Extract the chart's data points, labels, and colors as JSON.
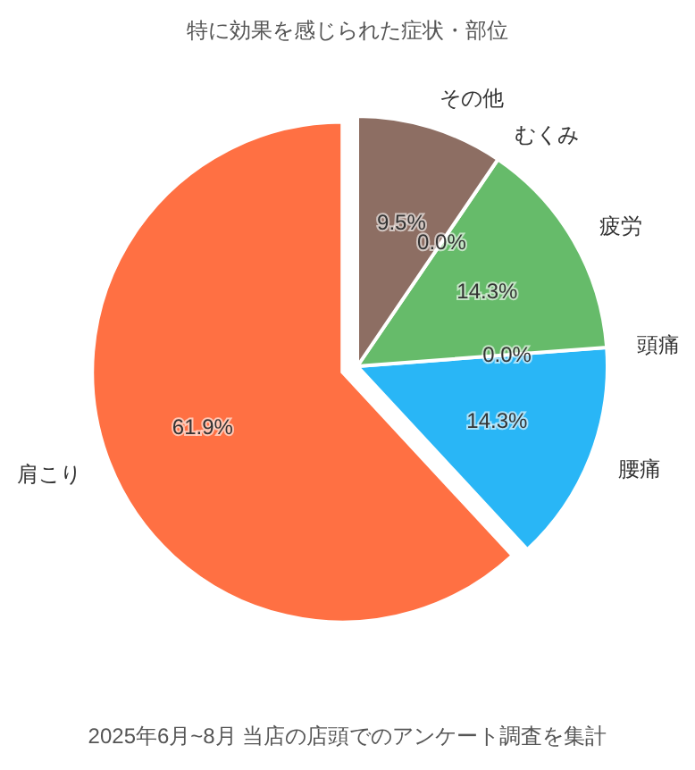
{
  "chart_data": {
    "type": "pie",
    "title": "特に効果を感じられた症状・部位",
    "categories": [
      "肩こり",
      "腰痛",
      "頭痛",
      "疲労",
      "むくみ",
      "その他"
    ],
    "values": [
      61.9,
      14.3,
      0.0,
      14.3,
      0.0,
      9.5
    ],
    "colors": [
      "#ff7043",
      "#29b6f6",
      "#ffca28",
      "#66bb6a",
      "#ab47bc",
      "#8d6e63"
    ],
    "value_labels": [
      "61.9%",
      "14.3%",
      "0.0%",
      "14.3%",
      "0.0%",
      "9.5%"
    ],
    "annotations": [
      "2025年6月~8月 当店の店頭でのアンケート調査を集計"
    ],
    "legend": false
  }
}
